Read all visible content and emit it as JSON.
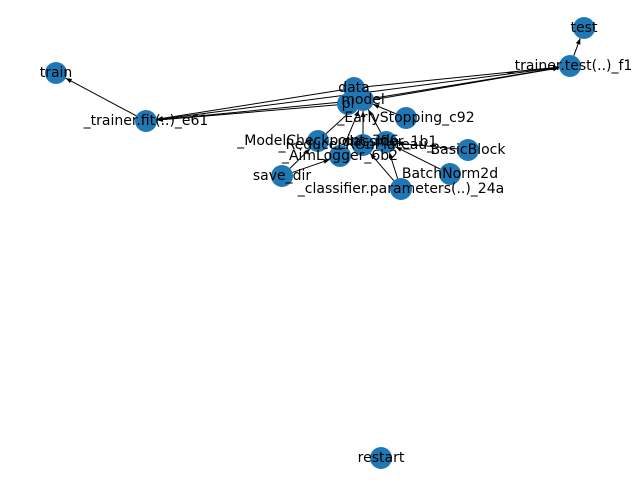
{
  "graph": {
    "node_color": "#1f77b4",
    "edge_color": "#000000",
    "nodes": [
      {
        "id": "test",
        "label": "test"
      },
      {
        "id": "trainer_test",
        "label": "_trainer.test(..)_f1"
      },
      {
        "id": "train",
        "label": "train"
      },
      {
        "id": "trainer_fit",
        "label": "_trainer.fit(..)_e61"
      },
      {
        "id": "data",
        "label": "data"
      },
      {
        "id": "model",
        "label": "model"
      },
      {
        "id": "pl",
        "label": "pl"
      },
      {
        "id": "early_stopping",
        "label": "_EarlyStopping_c92"
      },
      {
        "id": "model_checkpoint",
        "label": "_ModelCheckpoint_3d6"
      },
      {
        "id": "reduce_lr",
        "label": "_ReduceLROnPlateau_..."
      },
      {
        "id": "classifier",
        "label": "_classifier_1b1"
      },
      {
        "id": "basic_block",
        "label": "BasicBlock"
      },
      {
        "id": "aim_logger",
        "label": "_AimLogger_6b2"
      },
      {
        "id": "batchnorm",
        "label": "BatchNorm2d"
      },
      {
        "id": "save_dir",
        "label": "save_dir"
      },
      {
        "id": "classifier_params",
        "label": "_classifier.parameters(..)_24a"
      },
      {
        "id": "restart",
        "label": "restart"
      }
    ],
    "edges": [
      {
        "from": "trainer_test",
        "to": "test"
      },
      {
        "from": "trainer_fit",
        "to": "train"
      },
      {
        "from": "pl",
        "to": "trainer_fit"
      },
      {
        "from": "pl",
        "to": "trainer_test"
      },
      {
        "from": "model",
        "to": "trainer_fit"
      },
      {
        "from": "model",
        "to": "trainer_test"
      },
      {
        "from": "data",
        "to": "trainer_fit"
      },
      {
        "from": "data",
        "to": "trainer_test"
      },
      {
        "from": "trainer_fit",
        "to": "trainer_test"
      },
      {
        "from": "early_stopping",
        "to": "model"
      },
      {
        "from": "model_checkpoint",
        "to": "model"
      },
      {
        "from": "reduce_lr",
        "to": "model"
      },
      {
        "from": "classifier",
        "to": "model"
      },
      {
        "from": "basic_block",
        "to": "classifier"
      },
      {
        "from": "batchnorm",
        "to": "classifier"
      },
      {
        "from": "classifier_params",
        "to": "reduce_lr"
      },
      {
        "from": "classifier_params",
        "to": "classifier"
      },
      {
        "from": "aim_logger",
        "to": "model"
      },
      {
        "from": "save_dir",
        "to": "model_checkpoint"
      },
      {
        "from": "save_dir",
        "to": "aim_logger"
      }
    ]
  }
}
